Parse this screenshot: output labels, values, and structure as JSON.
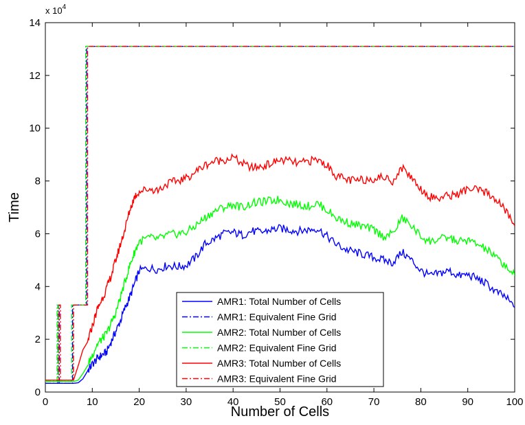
{
  "chart_data": {
    "type": "line",
    "title": "",
    "xlabel": "Number of Cells",
    "ylabel": "Time",
    "xlim": [
      0,
      100
    ],
    "ylim": [
      0,
      140000
    ],
    "y_exponent_label": "x 10",
    "y_exponent_power": "4",
    "x_ticks": [
      0,
      10,
      20,
      30,
      40,
      50,
      60,
      70,
      80,
      90,
      100
    ],
    "y_ticks": [
      0,
      2,
      4,
      6,
      8,
      10,
      12,
      14
    ],
    "grid": false,
    "legend_position": "bottom-center",
    "series": [
      {
        "name": "AMR1: Total Number of Cells",
        "color": "#0000ff",
        "dash": "solid",
        "x": [
          0,
          6,
          7,
          8,
          9,
          10,
          11,
          12,
          13,
          14,
          15,
          16,
          17,
          18,
          19,
          20,
          22,
          24,
          26,
          28,
          30,
          32,
          34,
          36,
          38,
          40,
          42,
          44,
          46,
          48,
          50,
          52,
          54,
          56,
          58,
          60,
          62,
          64,
          66,
          68,
          70,
          72,
          74,
          76,
          78,
          80,
          82,
          84,
          86,
          88,
          90,
          92,
          94,
          96,
          98,
          100
        ],
        "y": [
          3300,
          3300,
          3500,
          5000,
          8000,
          10500,
          12500,
          14000,
          15000,
          19000,
          23000,
          27000,
          32000,
          36000,
          41000,
          46000,
          47000,
          46500,
          48000,
          47500,
          48000,
          51000,
          56000,
          58000,
          60000,
          60500,
          59500,
          61000,
          60500,
          61500,
          62000,
          61500,
          61000,
          61500,
          62000,
          59000,
          56000,
          54000,
          53000,
          52000,
          51000,
          50000,
          49000,
          53000,
          50000,
          46000,
          44000,
          45000,
          46000,
          44000,
          44500,
          43000,
          41000,
          38000,
          36000,
          32000
        ]
      },
      {
        "name": "AMR1: Equivalent Fine Grid",
        "color": "#0000ff",
        "dash": "dashdot",
        "x": [
          0,
          2.7,
          2.7,
          3.0,
          3.0,
          5.8,
          5.8,
          6.1,
          6.1,
          8.8,
          8.8,
          100
        ],
        "y": [
          3300,
          3300,
          33000,
          33000,
          3300,
          3300,
          33000,
          33000,
          33000,
          33000,
          131000,
          131000
        ]
      },
      {
        "name": "AMR2: Total Number of Cells",
        "color": "#00ff00",
        "dash": "solid",
        "x": [
          0,
          6,
          7,
          8,
          9,
          10,
          11,
          12,
          13,
          14,
          15,
          16,
          17,
          18,
          19,
          20,
          22,
          24,
          26,
          28,
          30,
          32,
          34,
          36,
          38,
          40,
          42,
          44,
          46,
          48,
          50,
          52,
          54,
          56,
          58,
          60,
          62,
          64,
          66,
          68,
          70,
          72,
          74,
          76,
          78,
          80,
          82,
          84,
          86,
          88,
          90,
          92,
          94,
          96,
          98,
          100
        ],
        "y": [
          4000,
          4000,
          4500,
          7000,
          10000,
          14000,
          18000,
          20000,
          22000,
          26000,
          30000,
          36000,
          42000,
          48000,
          53000,
          57000,
          58500,
          58000,
          59500,
          60000,
          60500,
          63000,
          66000,
          68500,
          70000,
          71000,
          70000,
          71500,
          72000,
          72500,
          73000,
          71500,
          71000,
          70500,
          71500,
          69000,
          66000,
          64500,
          63500,
          62500,
          61500,
          59000,
          60000,
          66000,
          63000,
          59000,
          57000,
          58000,
          58500,
          57000,
          57500,
          56000,
          54000,
          51000,
          48000,
          44000
        ]
      },
      {
        "name": "AMR2: Equivalent Fine Grid",
        "color": "#00ff00",
        "dash": "dashdot",
        "x": [
          0,
          2.5,
          2.5,
          2.8,
          2.8,
          5.6,
          5.6,
          5.9,
          5.9,
          8.6,
          8.6,
          100
        ],
        "y": [
          4000,
          4000,
          33000,
          33000,
          4000,
          4000,
          33000,
          33000,
          33000,
          33000,
          131000,
          131000
        ]
      },
      {
        "name": "AMR3: Total Number of Cells",
        "color": "#ff0000",
        "dash": "solid",
        "x": [
          0,
          6,
          7,
          8,
          9,
          10,
          11,
          12,
          13,
          14,
          15,
          16,
          17,
          18,
          19,
          20,
          22,
          24,
          26,
          28,
          30,
          32,
          34,
          36,
          38,
          40,
          42,
          44,
          46,
          48,
          50,
          52,
          54,
          56,
          58,
          60,
          62,
          64,
          66,
          68,
          70,
          72,
          74,
          76,
          78,
          80,
          82,
          84,
          86,
          88,
          90,
          92,
          94,
          96,
          98,
          100
        ],
        "y": [
          4500,
          4500,
          10000,
          16000,
          19000,
          25000,
          31000,
          35000,
          39000,
          44000,
          50000,
          56000,
          62000,
          69000,
          74000,
          76000,
          77000,
          76500,
          79000,
          80000,
          81000,
          83500,
          86000,
          87500,
          88000,
          89000,
          86500,
          85000,
          85500,
          86500,
          88000,
          87500,
          86500,
          87500,
          88000,
          86000,
          82000,
          80500,
          80000,
          80500,
          81000,
          81500,
          80000,
          85000,
          81500,
          77000,
          74000,
          73500,
          74500,
          75000,
          77000,
          76500,
          75500,
          73000,
          69000,
          63000
        ]
      },
      {
        "name": "AMR3: Equivalent Fine Grid",
        "color": "#ff0000",
        "dash": "dashdot",
        "x": [
          0,
          2.9,
          2.9,
          3.2,
          3.2,
          6.0,
          6.0,
          6.3,
          6.3,
          9.0,
          9.0,
          100
        ],
        "y": [
          4500,
          4500,
          33000,
          33000,
          4500,
          4500,
          33000,
          33000,
          33000,
          33000,
          131000,
          131000
        ]
      }
    ]
  }
}
